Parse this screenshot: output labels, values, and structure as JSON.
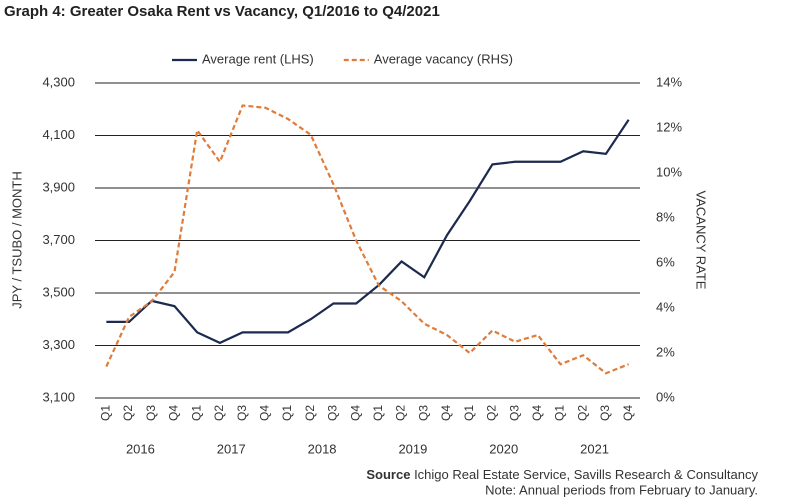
{
  "chart_data": {
    "type": "line",
    "title": "Graph 4: Greater Osaka Rent vs Vacancy, Q1/2016 to Q4/2021",
    "ylabel": "JPY / TSUBO / MONTH",
    "y2label": "VACANCY RATE",
    "categories": [
      "Q1",
      "Q2",
      "Q3",
      "Q4",
      "Q1",
      "Q2",
      "Q3",
      "Q4",
      "Q1",
      "Q2",
      "Q3",
      "Q4",
      "Q1",
      "Q2",
      "Q3",
      "Q4",
      "Q1",
      "Q2",
      "Q3",
      "Q4",
      "Q1",
      "Q2",
      "Q3",
      "Q4"
    ],
    "category_groups": [
      "2016",
      "2017",
      "2018",
      "2019",
      "2020",
      "2021"
    ],
    "series": [
      {
        "name": "Average rent (LHS)",
        "color": "#1d2a4f",
        "values": [
          3390,
          3390,
          3470,
          3450,
          3350,
          3310,
          3350,
          3350,
          3350,
          3400,
          3460,
          3460,
          3530,
          3620,
          3560,
          3720,
          3850,
          3990,
          4000,
          4000,
          4000,
          4040,
          4030,
          4160
        ]
      },
      {
        "name": "Average vacancy (RHS)",
        "color": "#e07b39",
        "axis": "y2",
        "dashed": true,
        "values": [
          1.4,
          3.6,
          4.3,
          5.6,
          11.9,
          10.5,
          13.0,
          12.9,
          12.4,
          11.7,
          9.5,
          7.0,
          5.0,
          4.3,
          3.3,
          2.8,
          2.0,
          3.0,
          2.5,
          2.8,
          1.5,
          1.9,
          1.1,
          1.5
        ]
      }
    ],
    "ylim": [
      3100,
      4300
    ],
    "yticks": [
      {
        "value": 3100,
        "label": "3,100"
      },
      {
        "value": 3300,
        "label": "3,300"
      },
      {
        "value": 3500,
        "label": "3,500"
      },
      {
        "value": 3700,
        "label": "3,700"
      },
      {
        "value": 3900,
        "label": "3,900"
      },
      {
        "value": 4100,
        "label": "4,100"
      },
      {
        "value": 4300,
        "label": "4,300"
      }
    ],
    "y2lim": [
      0,
      14
    ],
    "y2ticks": [
      {
        "value": 0,
        "label": "0%"
      },
      {
        "value": 2,
        "label": "2%"
      },
      {
        "value": 4,
        "label": "4%"
      },
      {
        "value": 6,
        "label": "6%"
      },
      {
        "value": 8,
        "label": "8%"
      },
      {
        "value": 10,
        "label": "10%"
      },
      {
        "value": 12,
        "label": "12%"
      },
      {
        "value": 14,
        "label": "14%"
      }
    ],
    "grid": true,
    "legend": "top",
    "source_label": "Source",
    "source": "Ichigo Real Estate Service, Savills Research & Consultancy",
    "note": "Note: Annual periods from February to January."
  }
}
